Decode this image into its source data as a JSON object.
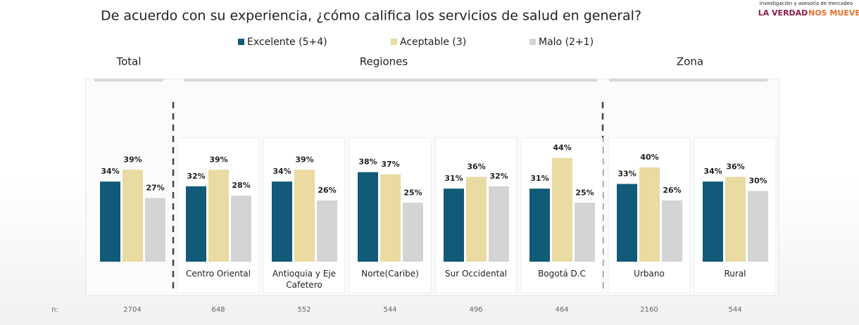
{
  "chart_data": {
    "type": "bar",
    "title": "De acuerdo con su experiencia, ¿cómo califica los servicios de salud en general?",
    "sections": [
      "Total",
      "Regiones",
      "Zona"
    ],
    "categories": [
      null,
      "Centro Oriental",
      "Antioquia y Eje Cafetero",
      "Norte(Caribe)",
      "Sur Occidental",
      "Bogotá D.C",
      "Urbano",
      "Rural"
    ],
    "series": [
      {
        "name": "Excelente (5+4)",
        "color": "#115a78",
        "values": [
          34,
          32,
          34,
          38,
          31,
          31,
          33,
          34
        ],
        "value_labels": [
          "34%",
          "32%",
          "34%",
          "38%",
          "31%",
          "31%",
          "33%",
          "34%"
        ]
      },
      {
        "name": "Aceptable (3)",
        "color": "#e9dba1",
        "values": [
          39,
          39,
          39,
          37,
          36,
          44,
          40,
          36
        ],
        "value_labels": [
          "39%",
          "39%",
          "39%",
          "37%",
          "36%",
          "44%",
          "40%",
          "36%"
        ]
      },
      {
        "name": "Malo (2+1)",
        "color": "#d4d4d4",
        "values": [
          27,
          28,
          26,
          25,
          32,
          25,
          26,
          30
        ],
        "value_labels": [
          "27%",
          "28%",
          "26%",
          "25%",
          "32%",
          "25%",
          "26%",
          "30%"
        ]
      }
    ],
    "sample_label": "n:",
    "sample_sizes": [
      2704,
      648,
      552,
      544,
      496,
      464,
      2160,
      544
    ]
  },
  "logo": {
    "tagline": "investigación y asesoría de mercadeo",
    "brand": "LA VERDAD",
    "slogan": "NOS MUEVE"
  }
}
